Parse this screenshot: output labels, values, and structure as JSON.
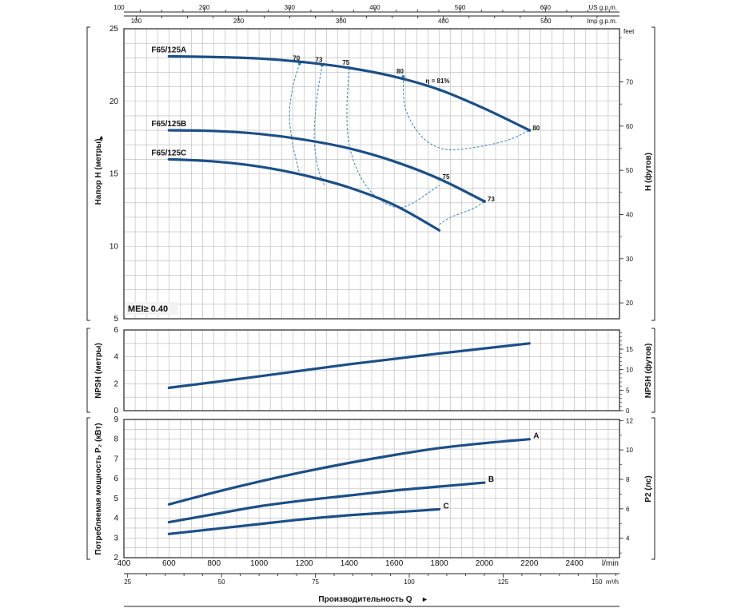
{
  "chart_data": {
    "type": "line",
    "flow_axis": {
      "lpm_ticks": [
        400,
        600,
        800,
        1000,
        1200,
        1400,
        1600,
        1800,
        2000,
        2200,
        2400
      ],
      "lpm_unit": "l/min",
      "m3h_ticks": [
        25,
        50,
        75,
        100,
        125,
        150
      ],
      "m3h_unit": "m³/h",
      "usgpm_ticks": [
        100,
        200,
        300,
        400,
        500,
        600
      ],
      "usgpm_unit": "US g.p.m.",
      "impgpm_ticks": [
        100,
        200,
        300,
        400,
        500
      ],
      "impgpm_unit": "Imp g.p.m.",
      "xlim": [
        400,
        2600
      ],
      "title": "Производительность Q"
    },
    "head_panel": {
      "ylabel": "Напор H (метры)",
      "ylabel_right": "H (футов)",
      "ylim": [
        5,
        25
      ],
      "yticks": [
        5,
        10,
        15,
        20,
        25
      ],
      "feet_ticks": [
        20,
        30,
        40,
        50,
        60,
        70
      ],
      "feet_unit": "feet",
      "badge": "MEI≥ 0.40",
      "series": [
        {
          "name": "F65/125A",
          "x": [
            600,
            800,
            1000,
            1200,
            1400,
            1600,
            1800,
            2000,
            2200
          ],
          "y": [
            23.1,
            23.05,
            22.95,
            22.7,
            22.3,
            21.7,
            20.8,
            19.5,
            18.0
          ]
        },
        {
          "name": "F65/125B",
          "x": [
            600,
            800,
            1000,
            1200,
            1400,
            1600,
            1800,
            2000
          ],
          "y": [
            18.0,
            17.95,
            17.75,
            17.35,
            16.75,
            15.85,
            14.65,
            13.1
          ]
        },
        {
          "name": "F65/125C",
          "x": [
            600,
            800,
            1000,
            1200,
            1400,
            1600,
            1800
          ],
          "y": [
            16.0,
            15.85,
            15.5,
            14.9,
            14.05,
            12.85,
            11.1
          ]
        }
      ],
      "efficiency_curves": [
        {
          "label": "70",
          "x": [
            1180,
            1150,
            1135,
            1150,
            1180
          ],
          "y": [
            22.6,
            21.0,
            19.0,
            17.0,
            15.0
          ]
        },
        {
          "label": "73",
          "x": [
            1280,
            1255,
            1245,
            1260,
            1290
          ],
          "y": [
            22.5,
            20.0,
            17.5,
            15.5,
            14.2
          ]
        },
        {
          "label": "75",
          "x": [
            1400,
            1390,
            1400,
            1450,
            1530,
            1640,
            1800
          ],
          "y": [
            22.3,
            19.5,
            17.0,
            14.8,
            13.3,
            12.7,
            14.2
          ]
        },
        {
          "label": "73",
          "x": [
            1800,
            1850,
            1950,
            2000
          ],
          "y": [
            11.5,
            12.0,
            12.6,
            13.1
          ]
        },
        {
          "label": "80",
          "x": [
            1640,
            1650,
            1720,
            1820,
            1950,
            2100,
            2200
          ],
          "y": [
            21.7,
            19.5,
            17.6,
            16.7,
            16.8,
            17.3,
            18.0
          ]
        }
      ],
      "efficiency_markers": [
        {
          "label": "70",
          "x": 1180,
          "y": 22.6
        },
        {
          "label": "73",
          "x": 1280,
          "y": 22.5
        },
        {
          "label": "75",
          "x": 1400,
          "y": 22.3
        },
        {
          "label": "80",
          "x": 1640,
          "y": 21.7
        },
        {
          "label": "η = 81%",
          "x": 1800,
          "y": 20.8
        },
        {
          "label": "80",
          "x": 2200,
          "y": 18.0
        },
        {
          "label": "75",
          "x": 1800,
          "y": 14.65
        },
        {
          "label": "73",
          "x": 2000,
          "y": 13.1
        }
      ]
    },
    "npsh_panel": {
      "ylabel": "NPSH (метры)",
      "ylabel_right": "NPSH (футов)",
      "ylim": [
        0,
        6
      ],
      "yticks": [
        0,
        2,
        4,
        6
      ],
      "feet_ticks": [
        0,
        5,
        10,
        15
      ],
      "series": [
        {
          "name": "",
          "x": [
            600,
            1000,
            1400,
            1800,
            2200
          ],
          "y": [
            1.7,
            2.55,
            3.45,
            4.25,
            5.0
          ]
        }
      ]
    },
    "power_panel": {
      "ylabel": "Потребляемая мощность P₂ (кВт)",
      "ylabel_right": "P2 (лс)",
      "ylim": [
        2,
        9
      ],
      "yticks": [
        2,
        3,
        4,
        5,
        6,
        7,
        8,
        9
      ],
      "hp_ticks": [
        4,
        6,
        8,
        10,
        12
      ],
      "series": [
        {
          "name": "A",
          "x": [
            600,
            800,
            1000,
            1200,
            1400,
            1600,
            1800,
            2000,
            2200
          ],
          "y": [
            4.7,
            5.3,
            5.85,
            6.35,
            6.8,
            7.2,
            7.55,
            7.8,
            8.0
          ]
        },
        {
          "name": "B",
          "x": [
            600,
            800,
            1000,
            1200,
            1400,
            1600,
            1800,
            2000
          ],
          "y": [
            3.8,
            4.2,
            4.6,
            4.9,
            5.15,
            5.4,
            5.6,
            5.8
          ]
        },
        {
          "name": "C",
          "x": [
            600,
            800,
            1000,
            1200,
            1400,
            1600,
            1800
          ],
          "y": [
            3.2,
            3.45,
            3.7,
            3.95,
            4.15,
            4.3,
            4.45
          ]
        }
      ]
    }
  },
  "colors": {
    "curve": "#1c4f86",
    "efficiency": "#3a87b8",
    "grid": "#b8b8b8",
    "frame": "#222222"
  }
}
